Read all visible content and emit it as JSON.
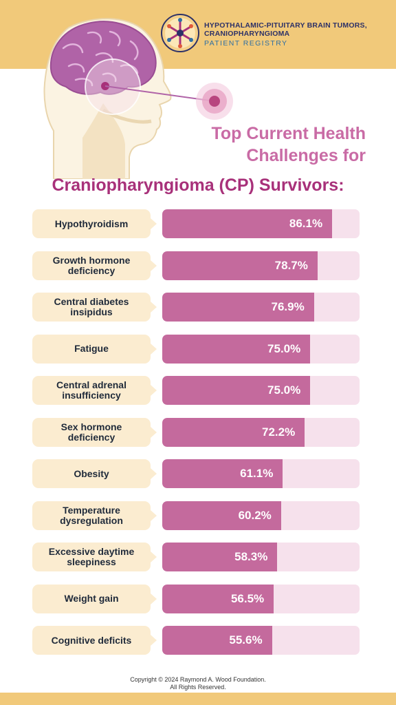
{
  "header": {
    "registry_line1": "HYPOTHALAMIC-PITUITARY BRAIN TUMORS,",
    "registry_line2": "CRANIOPHARYNGIOMA",
    "registry_sub": "PATIENT REGISTRY",
    "logo_icon": "registry-logo-icon",
    "illustration": "head-brain-illustration"
  },
  "colors": {
    "band": "#f1c97a",
    "bar_fill": "#c46a9d",
    "bar_track": "#f6e1ec",
    "label_bg": "#fbecd0",
    "title": "#c96ba5",
    "subtitle": "#a8317a"
  },
  "chart_data": {
    "type": "bar",
    "orientation": "horizontal",
    "title": "Top Current Health Challenges for",
    "subtitle": "Craniopharyngioma (CP) Survivors:",
    "categories": [
      "Hypothyroidism",
      "Growth hormone deficiency",
      "Central diabetes insipidus",
      "Fatigue",
      "Central adrenal insufficiency",
      "Sex hormone deficiency",
      "Obesity",
      "Temperature dysregulation",
      "Excessive daytime sleepiness",
      "Weight gain",
      "Cognitive deficits"
    ],
    "values": [
      86.1,
      78.7,
      76.9,
      75.0,
      75.0,
      72.2,
      61.1,
      60.2,
      58.3,
      56.5,
      55.6
    ],
    "value_labels": [
      "86.1%",
      "78.7%",
      "76.9%",
      "75.0%",
      "75.0%",
      "72.2%",
      "61.1%",
      "60.2%",
      "58.3%",
      "56.5%",
      "55.6%"
    ],
    "xlim": [
      0,
      100
    ]
  },
  "footer": {
    "copyright_line1": "Copyright © 2024 Raymond A. Wood Foundation.",
    "copyright_line2": "All Rights Reserved."
  }
}
